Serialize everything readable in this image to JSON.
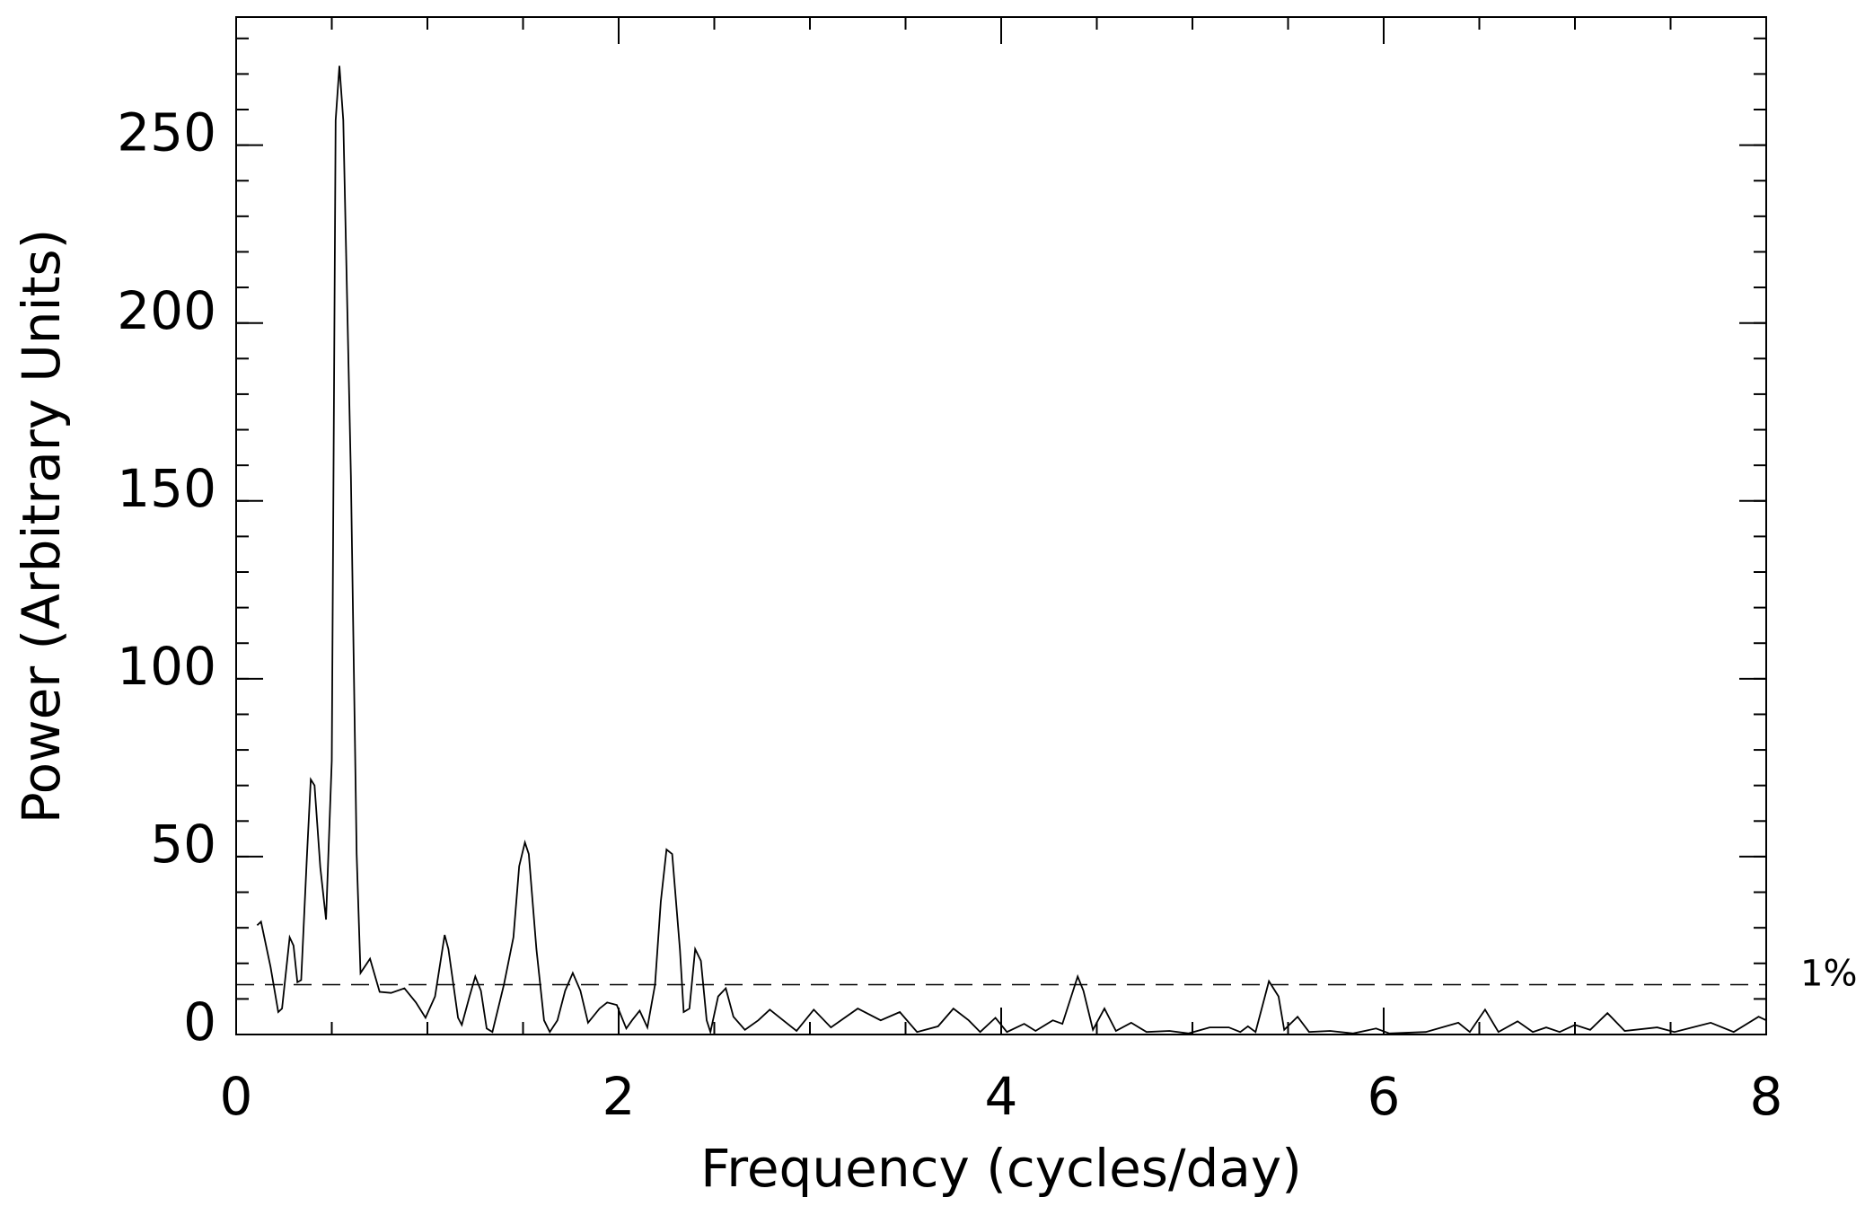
{
  "chart_data": {
    "type": "line",
    "xlabel": "Frequency (cycles/day)",
    "ylabel": "Power (Arbitrary Units)",
    "x": [
      0.11,
      0.13,
      0.18,
      0.22,
      0.24,
      0.28,
      0.3,
      0.32,
      0.34,
      0.37,
      0.39,
      0.41,
      0.44,
      0.47,
      0.5,
      0.52,
      0.54,
      0.56,
      0.6,
      0.63,
      0.65,
      0.7,
      0.73,
      0.75,
      0.81,
      0.88,
      0.94,
      0.99,
      1.04,
      1.09,
      1.11,
      1.16,
      1.18,
      1.22,
      1.25,
      1.28,
      1.31,
      1.34,
      1.4,
      1.45,
      1.48,
      1.51,
      1.53,
      1.57,
      1.61,
      1.64,
      1.68,
      1.72,
      1.76,
      1.8,
      1.84,
      1.9,
      1.94,
      1.99,
      2.04,
      2.07,
      2.11,
      2.15,
      2.19,
      2.22,
      2.25,
      2.28,
      2.32,
      2.34,
      2.37,
      2.4,
      2.43,
      2.46,
      2.48,
      2.52,
      2.56,
      2.6,
      2.66,
      2.73,
      2.79,
      2.86,
      2.93,
      3.02,
      3.11,
      3.25,
      3.37,
      3.47,
      3.56,
      3.67,
      3.75,
      3.83,
      3.89,
      3.97,
      4.03,
      4.12,
      4.18,
      4.27,
      4.32,
      4.4,
      4.43,
      4.48,
      4.54,
      4.6,
      4.68,
      4.76,
      4.88,
      4.98,
      5.09,
      5.19,
      5.25,
      5.29,
      5.33,
      5.4,
      5.45,
      5.48,
      5.55,
      5.61,
      5.72,
      5.84,
      5.96,
      6.03,
      6.22,
      6.39,
      6.45,
      6.53,
      6.6,
      6.7,
      6.78,
      6.85,
      6.92,
      7.0,
      7.08,
      7.17,
      7.26,
      7.43,
      7.52,
      7.71,
      7.83,
      7.96,
      8.0
    ],
    "values": [
      30.7,
      31.7,
      19,
      6.3,
      7.3,
      27.3,
      25,
      14.7,
      15.3,
      50,
      71.7,
      70,
      47,
      32.3,
      77,
      257,
      272.3,
      257,
      157,
      50.7,
      17.3,
      21.3,
      15.7,
      12,
      11.7,
      13,
      9,
      4.7,
      10.7,
      28,
      24,
      4.7,
      2.7,
      10.7,
      16.3,
      12.3,
      1.7,
      0.7,
      14,
      27.3,
      47.3,
      54,
      50.7,
      24,
      4,
      0.7,
      4,
      12.3,
      17.3,
      12.3,
      3.3,
      7.3,
      9,
      8.3,
      1.7,
      4,
      6.7,
      2,
      14,
      37.3,
      52,
      50.7,
      24,
      6.3,
      7.3,
      24,
      20.7,
      4,
      0.7,
      10.7,
      13,
      5,
      1.3,
      4,
      7,
      4,
      1,
      7,
      2,
      7.3,
      4,
      6.3,
      0.7,
      2.3,
      7.3,
      4,
      0.7,
      4.7,
      0.7,
      3,
      1,
      4,
      3,
      16.3,
      12.3,
      1.3,
      7.3,
      1,
      3.3,
      0.7,
      1,
      0.3,
      2,
      2,
      0.7,
      2.3,
      0.7,
      15,
      10.7,
      1.3,
      5,
      0.7,
      1,
      0.3,
      1.7,
      0.3,
      0.7,
      3.3,
      0.7,
      7,
      0.7,
      3.7,
      0.7,
      2,
      0.7,
      2.7,
      1.3,
      6,
      1,
      2,
      0.7,
      3.3,
      0.7,
      5,
      4
    ],
    "color": "#000000",
    "xlim": [
      0,
      8
    ],
    "xticks": [
      0,
      2,
      4,
      6,
      8
    ],
    "xminor": 0.5,
    "ylim": [
      0,
      286
    ],
    "yticks": [
      0,
      50,
      100,
      150,
      200,
      250
    ],
    "yminor": 10,
    "threshold": {
      "value": 14,
      "label": "1%"
    }
  }
}
